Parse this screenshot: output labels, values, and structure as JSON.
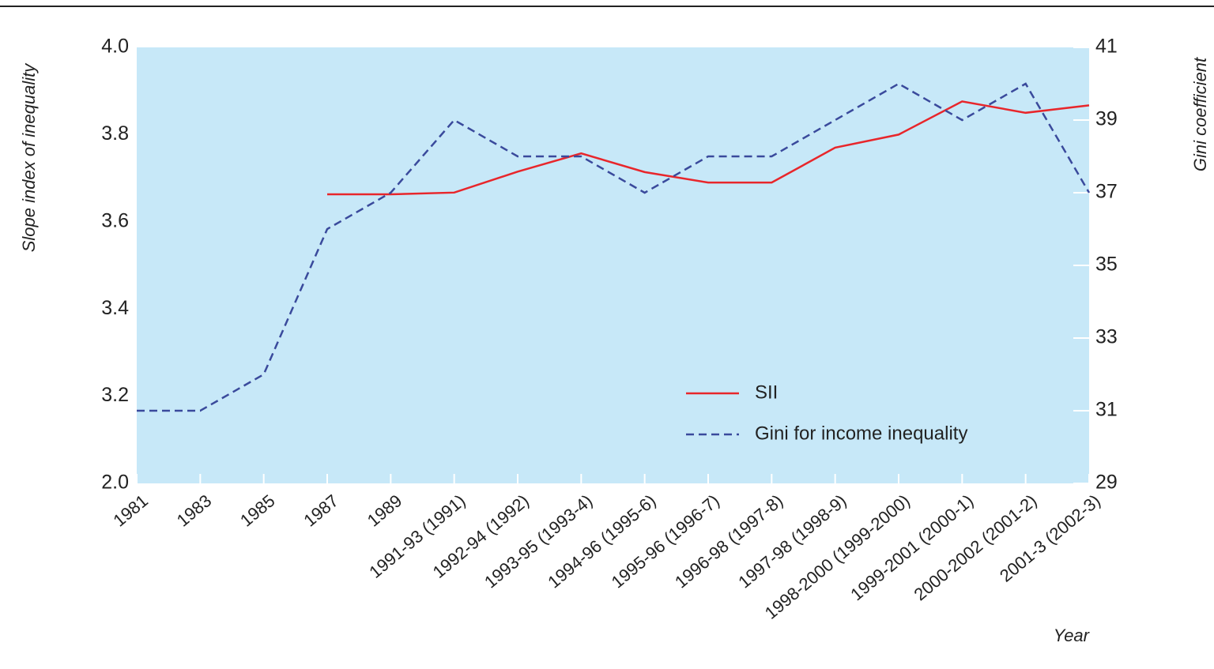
{
  "chart_data": {
    "type": "line",
    "x_label": "Year",
    "y_label": "Slope index of inequality",
    "y2_label": "Gini coefficient",
    "categories": [
      "1981",
      "1983",
      "1985",
      "1987",
      "1989",
      "1991-93 (1991)",
      "1992-94 (1992)",
      "1993-95 (1993-4)",
      "1994-96 (1995-6)",
      "1995-96 (1996-7)",
      "1996-98 (1997-8)",
      "1997-98 (1998-9)",
      "1998-2000 (1999-2000)",
      "1999-2001 (2000-1)",
      "2000-2002 (2001-2)",
      "2001-3 (2002-3)"
    ],
    "series": [
      {
        "name": "SII",
        "color": "#e8262b",
        "dash": false,
        "values": [
          null,
          null,
          null,
          3.663,
          3.663,
          3.667,
          3.715,
          3.757,
          3.714,
          3.69,
          3.69,
          3.77,
          3.8,
          3.876,
          3.85,
          3.867
        ]
      },
      {
        "name": "Gini for income inequality",
        "color": "#3a4a9c",
        "dash": true,
        "axis": "y2",
        "values": [
          31,
          31,
          32,
          36,
          37,
          39,
          38,
          38,
          37,
          38,
          38,
          39,
          40,
          39,
          40,
          37
        ]
      }
    ],
    "ylim": [
      2.0,
      4.0
    ],
    "yticks": [
      {
        "value": 2.0,
        "label": "2.0"
      },
      3.2,
      3.4,
      3.6,
      3.8,
      {
        "value": 4.0,
        "label": "4.0"
      }
    ],
    "y2lim": [
      29,
      41
    ],
    "y2ticks": [
      29,
      31,
      33,
      35,
      37,
      39,
      41
    ],
    "axis_break": true,
    "background": "#c7e8f8"
  }
}
